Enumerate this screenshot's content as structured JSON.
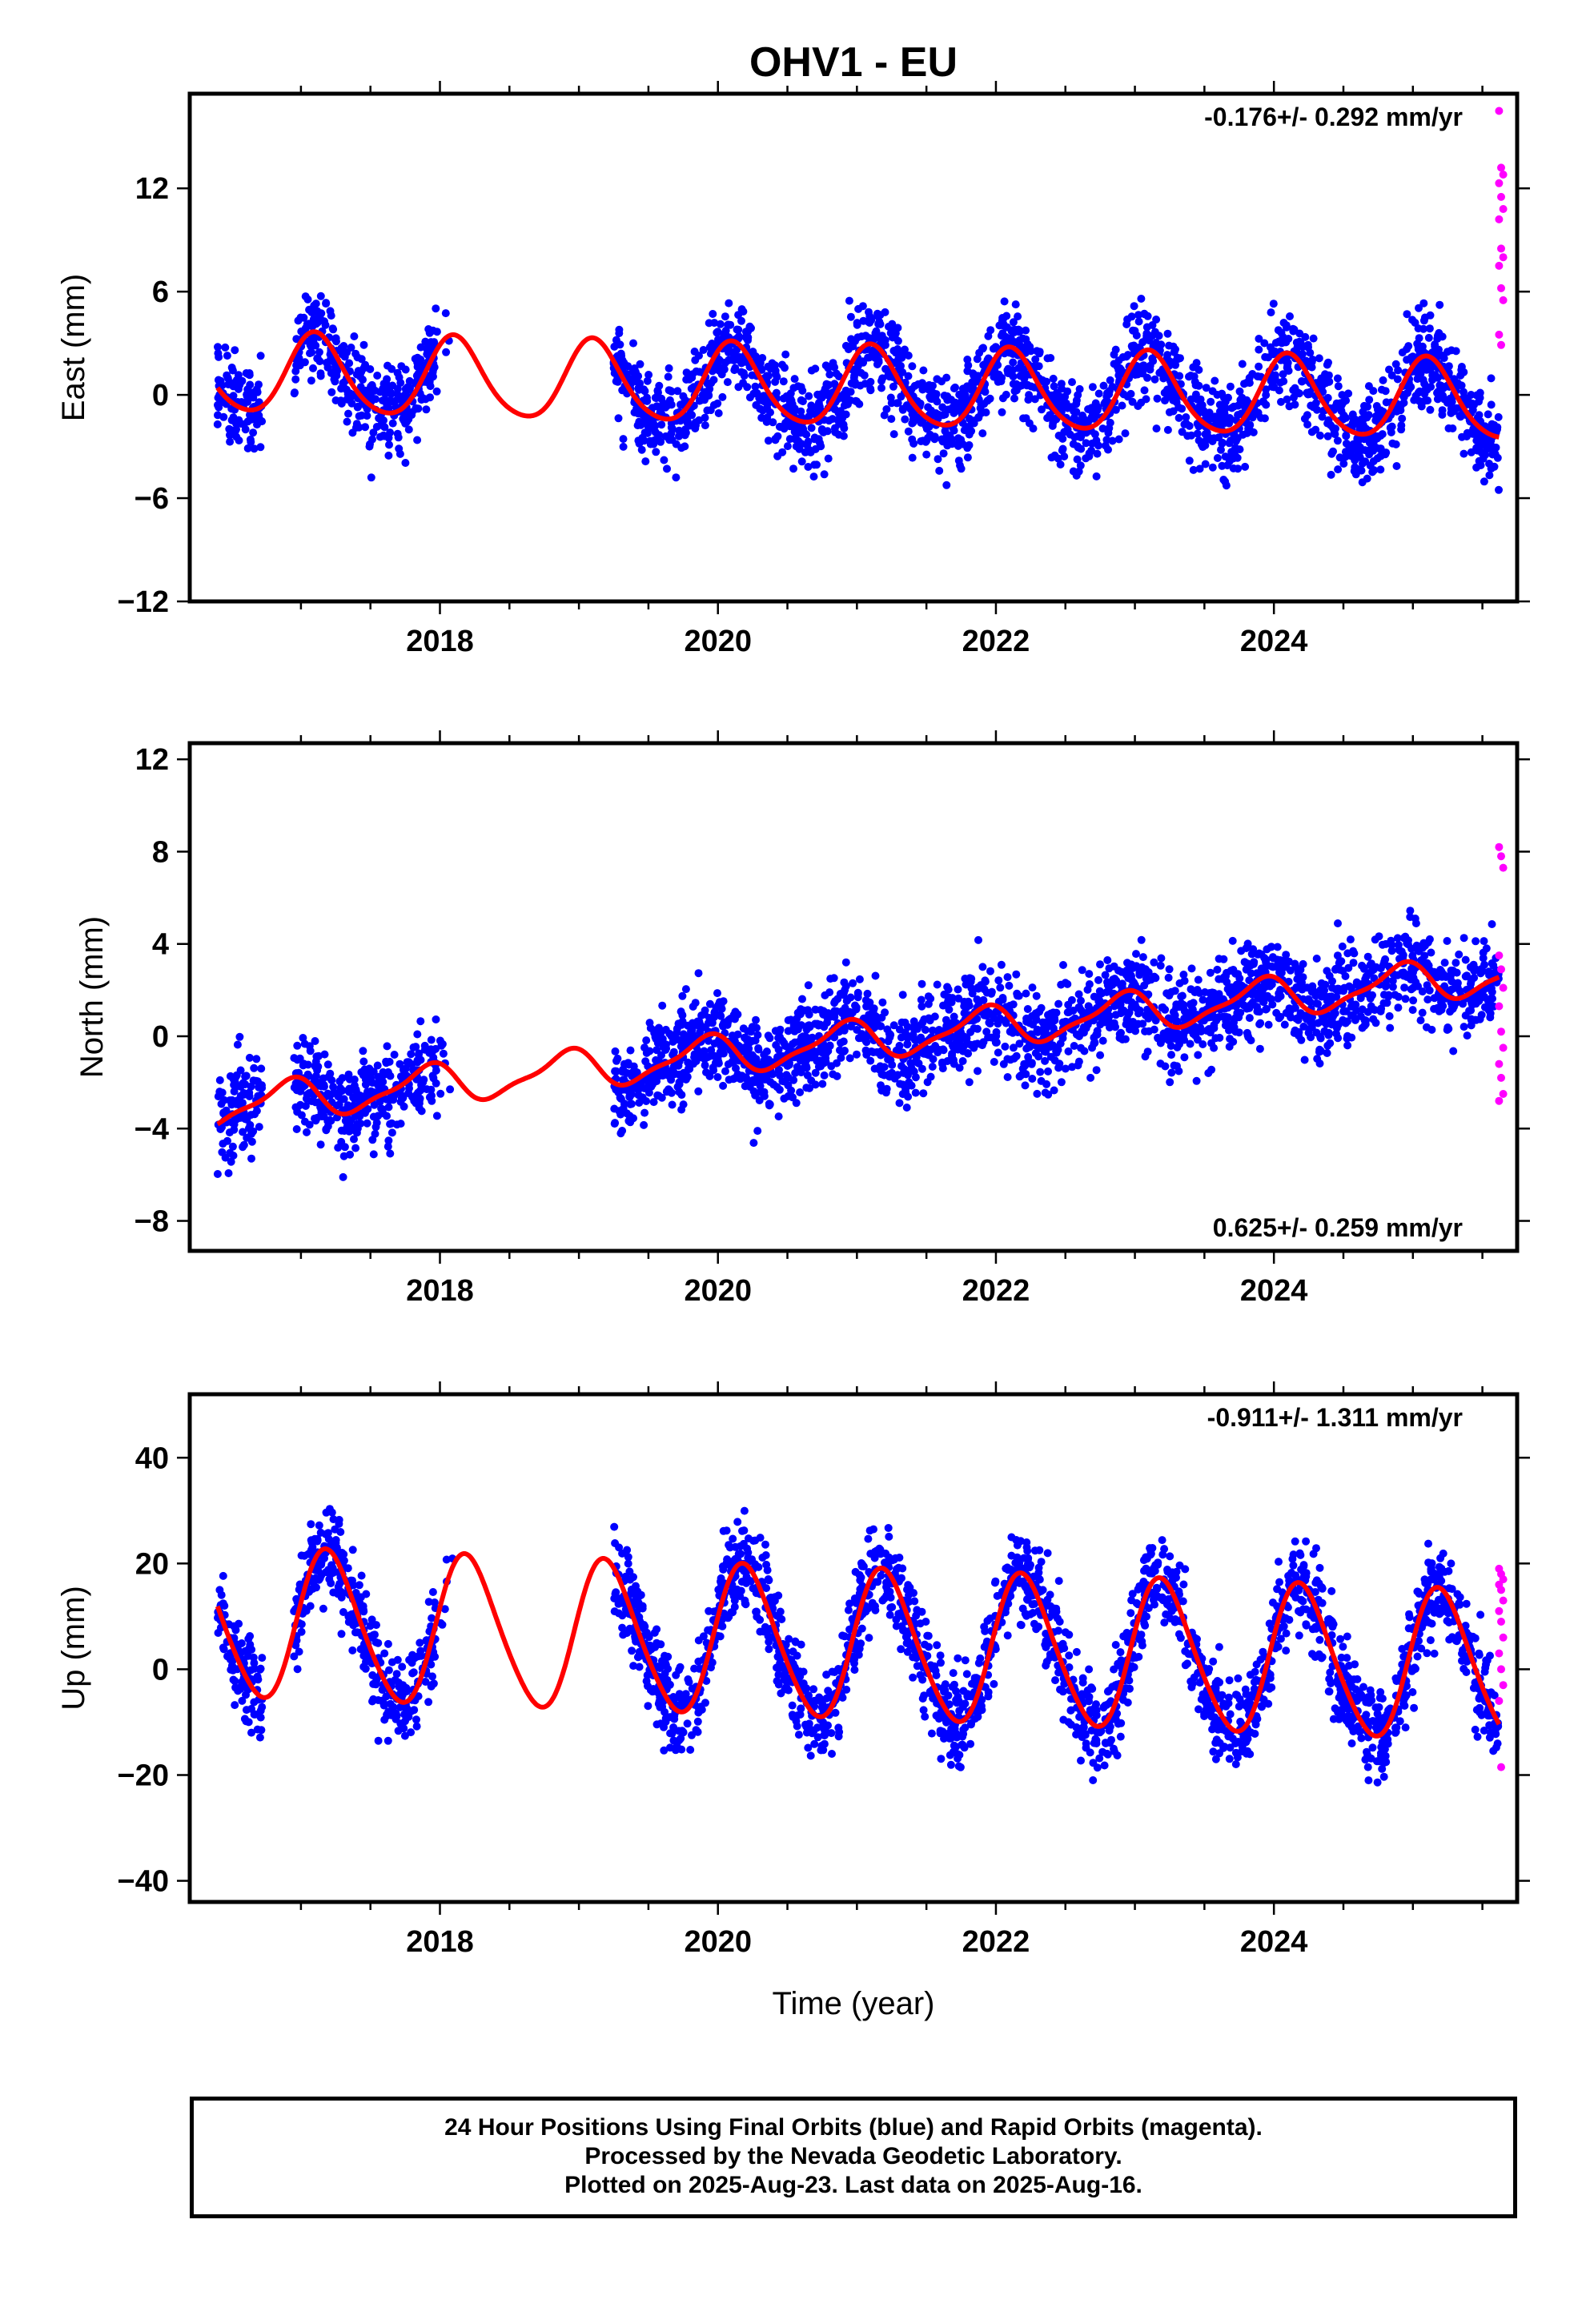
{
  "title": "OHV1 - EU",
  "xlabel": "Time (year)",
  "footer": {
    "line1": "24 Hour Positions Using Final Orbits (blue) and Rapid Orbits (magenta).",
    "line2": "Processed by the Nevada Geodetic Laboratory.",
    "line3": "Plotted on 2025-Aug-23. Last data on 2025-Aug-16."
  },
  "colors": {
    "final": "#0000ff",
    "rapid": "#ff00ff",
    "model": "#ff0000",
    "frame": "#000000"
  },
  "chart_data": [
    {
      "type": "scatter",
      "ylabel": "East (mm)",
      "rate": "-0.176+/- 0.292 mm/yr",
      "rate_position": "top-right",
      "xlim": [
        2016.2,
        2025.75
      ],
      "ylim": [
        -12,
        17.5
      ],
      "x_ticks": [
        2018,
        2020,
        2022,
        2024
      ],
      "x_tick_labels": [
        "2018",
        "2020",
        "2022",
        "2024"
      ],
      "y_ticks": [
        -12,
        -6,
        0,
        6,
        12
      ],
      "y_tick_labels": [
        "−12",
        "−6",
        "0",
        "6",
        "12"
      ],
      "series": [
        {
          "kind": "final",
          "segments": [
            [
              2016.4,
              2016.72
            ],
            [
              2016.95,
              2017.98
            ],
            [
              2017.9,
              2018.1
            ],
            [
              2019.25,
              2025.62
            ]
          ]
        },
        {
          "kind": "rapid",
          "x_range": [
            2025.62,
            2025.65
          ],
          "y_values": [
            16.5,
            13.2,
            12.8,
            12.3,
            11.5,
            10.8,
            10.2,
            8.5,
            8.0,
            7.5,
            6.2,
            5.5,
            3.5,
            2.9
          ]
        },
        {
          "kind": "model",
          "trend": -0.176,
          "offset": 0.4,
          "annual_amp": 2.3,
          "semiannual_amp": 0.3,
          "phase": 0.9
        }
      ],
      "trend_mm_per_yr": -0.176,
      "trend_sigma": 0.292
    },
    {
      "type": "scatter",
      "ylabel": "North (mm)",
      "rate": "0.625+/- 0.259 mm/yr",
      "rate_position": "bottom-right",
      "xlim": [
        2016.2,
        2025.75
      ],
      "ylim": [
        -9.3,
        12.7
      ],
      "x_ticks": [
        2018,
        2020,
        2022,
        2024
      ],
      "x_tick_labels": [
        "2018",
        "2020",
        "2022",
        "2024"
      ],
      "y_ticks": [
        -8,
        -4,
        0,
        4,
        8,
        12
      ],
      "y_tick_labels": [
        "−8",
        "−4",
        "0",
        "4",
        "8",
        "12"
      ],
      "series": [
        {
          "kind": "final",
          "segments": [
            [
              2016.4,
              2016.72
            ],
            [
              2016.95,
              2017.98
            ],
            [
              2017.9,
              2018.1
            ],
            [
              2019.25,
              2025.62
            ]
          ]
        },
        {
          "kind": "rapid",
          "x_range": [
            2025.62,
            2025.65
          ],
          "y_values": [
            8.2,
            7.8,
            7.3,
            3.5,
            2.9,
            2.1,
            1.3,
            0.2,
            -0.5,
            -1.2,
            -1.8,
            -2.5,
            -2.8
          ]
        },
        {
          "kind": "model",
          "trend": 0.625,
          "offset": -0.2,
          "annual_amp": 0.8,
          "semiannual_amp": 0.25,
          "phase": 2.2
        }
      ],
      "trend_mm_per_yr": 0.625,
      "trend_sigma": 0.259
    },
    {
      "type": "scatter",
      "ylabel": "Up (mm)",
      "rate": "-0.911+/- 1.311 mm/yr",
      "rate_position": "top-right",
      "xlim": [
        2016.2,
        2025.75
      ],
      "ylim": [
        -44,
        52
      ],
      "x_ticks": [
        2018,
        2020,
        2022,
        2024
      ],
      "x_tick_labels": [
        "2018",
        "2020",
        "2022",
        "2024"
      ],
      "y_ticks": [
        -40,
        -20,
        0,
        20,
        40
      ],
      "y_tick_labels": [
        "−40",
        "−20",
        "0",
        "20",
        "40"
      ],
      "series": [
        {
          "kind": "final",
          "segments": [
            [
              2016.4,
              2016.72
            ],
            [
              2016.95,
              2017.98
            ],
            [
              2017.9,
              2018.1
            ],
            [
              2019.25,
              2025.62
            ]
          ]
        },
        {
          "kind": "rapid",
          "x_range": [
            2025.62,
            2025.65
          ],
          "y_values": [
            19,
            18,
            17,
            16,
            15,
            13,
            11,
            9,
            6,
            3,
            0,
            -3,
            -6,
            -18.5
          ]
        },
        {
          "kind": "model",
          "trend": -0.911,
          "offset": 4.5,
          "annual_amp": 14,
          "semiannual_amp": 1.5,
          "phase": 0.3
        }
      ],
      "trend_mm_per_yr": -0.911,
      "trend_sigma": 1.311
    }
  ]
}
